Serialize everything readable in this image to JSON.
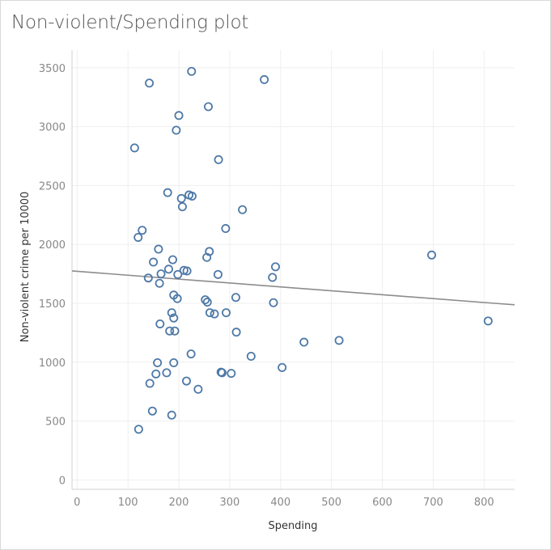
{
  "chart_data": {
    "type": "scatter",
    "title": "Non-violent/Spending plot",
    "xlabel": "Spending",
    "ylabel": "Non-violent crime per 10000",
    "xlim": [
      -10,
      860
    ],
    "ylim": [
      -80,
      3650
    ],
    "xticks": [
      0,
      100,
      200,
      300,
      400,
      500,
      600,
      700,
      800
    ],
    "yticks": [
      0,
      500,
      1000,
      1500,
      2000,
      2500,
      3000,
      3500
    ],
    "grid": true,
    "legend": "none",
    "colors": {
      "point": "#4e79a7",
      "trend": "#8c8c8c",
      "grid": "#efefef",
      "axis": "#d0d0d0"
    },
    "trend_line": {
      "x": [
        -10,
        860
      ],
      "y": [
        1775,
        1487
      ]
    },
    "points": [
      {
        "x": 225,
        "y": 3470
      },
      {
        "x": 142,
        "y": 3370
      },
      {
        "x": 368,
        "y": 3400
      },
      {
        "x": 258,
        "y": 3170
      },
      {
        "x": 200,
        "y": 3095
      },
      {
        "x": 195,
        "y": 2970
      },
      {
        "x": 113,
        "y": 2820
      },
      {
        "x": 278,
        "y": 2720
      },
      {
        "x": 178,
        "y": 2440
      },
      {
        "x": 220,
        "y": 2420
      },
      {
        "x": 226,
        "y": 2410
      },
      {
        "x": 205,
        "y": 2390
      },
      {
        "x": 207,
        "y": 2320
      },
      {
        "x": 325,
        "y": 2295
      },
      {
        "x": 292,
        "y": 2135
      },
      {
        "x": 128,
        "y": 2120
      },
      {
        "x": 120,
        "y": 2060
      },
      {
        "x": 160,
        "y": 1960
      },
      {
        "x": 260,
        "y": 1940
      },
      {
        "x": 697,
        "y": 1910
      },
      {
        "x": 188,
        "y": 1870
      },
      {
        "x": 150,
        "y": 1850
      },
      {
        "x": 255,
        "y": 1890
      },
      {
        "x": 390,
        "y": 1810
      },
      {
        "x": 180,
        "y": 1790
      },
      {
        "x": 210,
        "y": 1780
      },
      {
        "x": 216,
        "y": 1775
      },
      {
        "x": 165,
        "y": 1750
      },
      {
        "x": 198,
        "y": 1745
      },
      {
        "x": 277,
        "y": 1745
      },
      {
        "x": 140,
        "y": 1715
      },
      {
        "x": 384,
        "y": 1720
      },
      {
        "x": 162,
        "y": 1670
      },
      {
        "x": 190,
        "y": 1570
      },
      {
        "x": 197,
        "y": 1540
      },
      {
        "x": 312,
        "y": 1550
      },
      {
        "x": 252,
        "y": 1530
      },
      {
        "x": 256,
        "y": 1510
      },
      {
        "x": 386,
        "y": 1505
      },
      {
        "x": 186,
        "y": 1420
      },
      {
        "x": 261,
        "y": 1420
      },
      {
        "x": 270,
        "y": 1410
      },
      {
        "x": 293,
        "y": 1420
      },
      {
        "x": 190,
        "y": 1375
      },
      {
        "x": 808,
        "y": 1350
      },
      {
        "x": 163,
        "y": 1325
      },
      {
        "x": 182,
        "y": 1265
      },
      {
        "x": 192,
        "y": 1265
      },
      {
        "x": 313,
        "y": 1255
      },
      {
        "x": 515,
        "y": 1185
      },
      {
        "x": 446,
        "y": 1170
      },
      {
        "x": 224,
        "y": 1070
      },
      {
        "x": 342,
        "y": 1050
      },
      {
        "x": 158,
        "y": 995
      },
      {
        "x": 190,
        "y": 995
      },
      {
        "x": 403,
        "y": 955
      },
      {
        "x": 283,
        "y": 915
      },
      {
        "x": 285,
        "y": 910
      },
      {
        "x": 303,
        "y": 905
      },
      {
        "x": 155,
        "y": 900
      },
      {
        "x": 176,
        "y": 910
      },
      {
        "x": 143,
        "y": 820
      },
      {
        "x": 215,
        "y": 840
      },
      {
        "x": 238,
        "y": 770
      },
      {
        "x": 148,
        "y": 585
      },
      {
        "x": 186,
        "y": 550
      },
      {
        "x": 121,
        "y": 430
      }
    ]
  }
}
